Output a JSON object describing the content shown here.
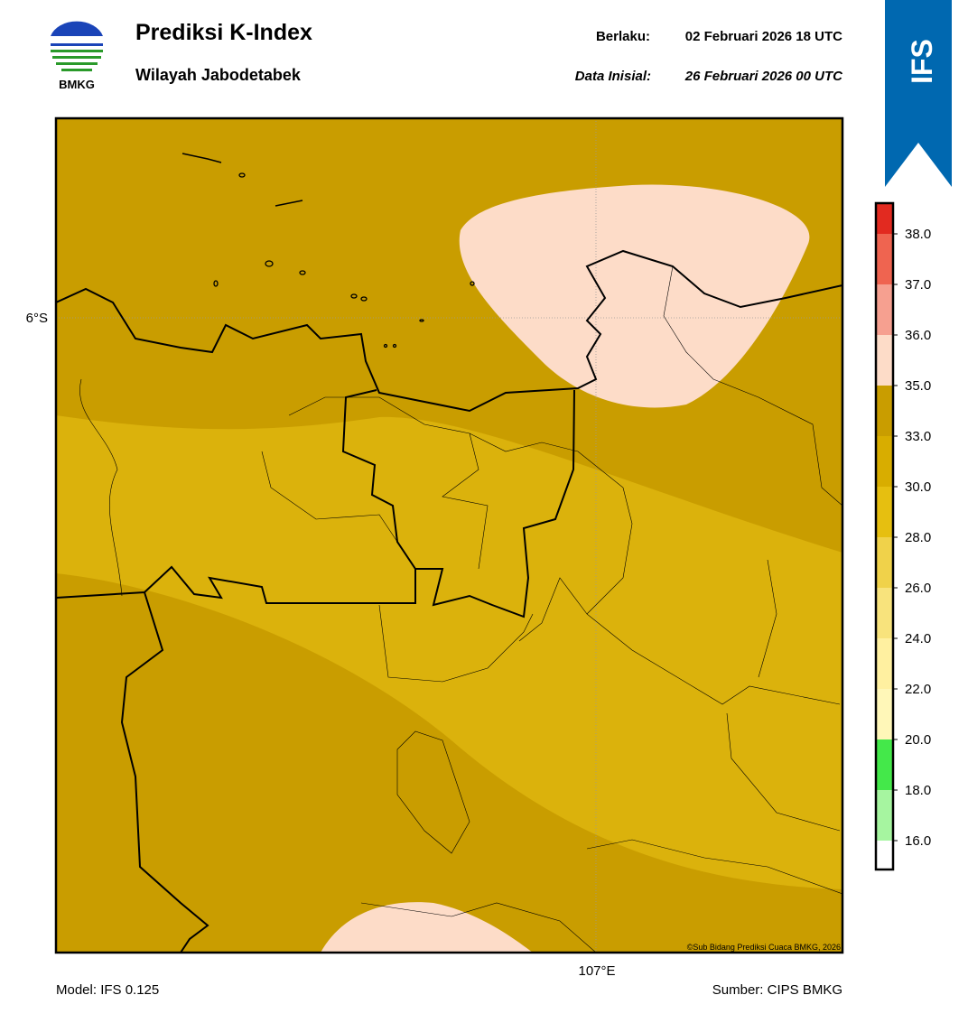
{
  "header": {
    "logo_text": "BMKG",
    "title": "Prediksi K-Index",
    "subtitle": "Wilayah Jabodetabek",
    "valid_label": "Berlaku:",
    "valid": "02 Februari 2026 18 UTC",
    "init_label": "Data Inisial:",
    "init": "26 Februari 2026 00 UTC",
    "badge": "IFS"
  },
  "map": {
    "lat_label": "6°S",
    "lon_label": "107°E",
    "credit": "©Sub Bidang Prediksi Cuaca BMKG, 2026"
  },
  "colorbar": {
    "ticks": [
      {
        "value": 16,
        "label": "16.0"
      },
      {
        "value": 18,
        "label": "18.0"
      },
      {
        "value": 20,
        "label": "20.0"
      },
      {
        "value": 22,
        "label": "22.0"
      },
      {
        "value": 24,
        "label": "24.0"
      },
      {
        "value": 26,
        "label": "26.0"
      },
      {
        "value": 28,
        "label": "28.0"
      },
      {
        "value": 30,
        "label": "30.0"
      },
      {
        "value": 33,
        "label": "33.0"
      },
      {
        "value": 35,
        "label": "35.0"
      },
      {
        "value": 36,
        "label": "36.0"
      },
      {
        "value": 37,
        "label": "37.0"
      },
      {
        "value": 38,
        "label": "38.0"
      }
    ],
    "colors": [
      "#ffffff",
      "#a6f5a0",
      "#44e84a",
      "#fff7b8",
      "#fff0a0",
      "#f8e37c",
      "#f0d24a",
      "#e6bf10",
      "#d8ad00",
      "#c99d00",
      "#fddcc8",
      "#f6a090",
      "#ef6450",
      "#e22a20"
    ]
  },
  "footer": {
    "model": "Model: IFS 0.125",
    "source": "Sumber: CIPS BMKG"
  }
}
